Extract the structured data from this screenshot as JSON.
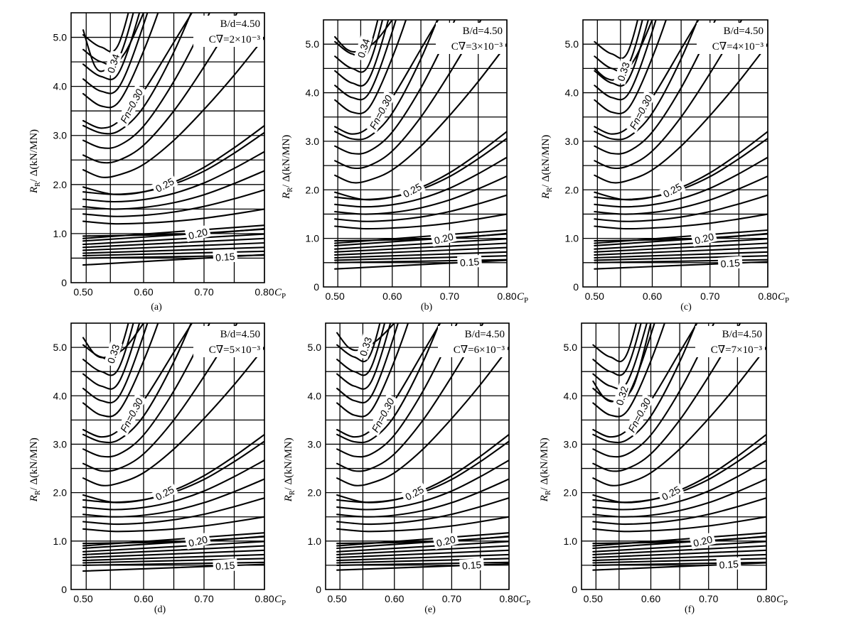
{
  "chart_data": [
    {
      "type": "line",
      "panel": "(a)",
      "xlabel": "C",
      "xlabel_sub": "P",
      "ylabel": "R",
      "ylabel_sub": "R",
      "ylabel_rest": "/ Δ(kN/MN)",
      "xlim": [
        0.48,
        0.8
      ],
      "ylim": [
        0,
        5.5
      ],
      "xticks": [
        0.5,
        0.6,
        0.7,
        0.8
      ],
      "xtick_labels": [
        "0.50",
        "0.60",
        "0.70",
        "0.80"
      ],
      "yticks": [
        0,
        1.0,
        2.0,
        3.0,
        4.0,
        5.0
      ],
      "ytick_labels": [
        "0",
        "1.0",
        "2.0",
        "3.0",
        "4.0",
        "5.0"
      ],
      "param_b_over_d": "B/d=4.50",
      "param_cv": "C∇=2×10⁻³",
      "series": [
        {
          "name": "Fn=0.15",
          "x": [
            0.5,
            0.8
          ],
          "values": [
            0.36,
            0.57
          ]
        },
        {
          "name": "Fn=0.20",
          "x": [
            0.5,
            0.6,
            0.7,
            0.8
          ],
          "values": [
            0.95,
            0.97,
            1.0,
            1.1
          ]
        },
        {
          "name": "Fn=0.25",
          "x": [
            0.5,
            0.55,
            0.6,
            0.65,
            0.7,
            0.75,
            0.8
          ],
          "values": [
            1.95,
            1.8,
            1.85,
            2.05,
            2.35,
            2.75,
            3.2
          ]
        },
        {
          "name": "Fn=0.30",
          "x": [
            0.5,
            0.53,
            0.56,
            0.6,
            0.65,
            0.68
          ],
          "values": [
            3.3,
            3.15,
            3.3,
            3.9,
            4.9,
            5.5
          ]
        },
        {
          "name": "Fn=0.34",
          "x": [
            0.5,
            0.52,
            0.54,
            0.57,
            0.6
          ],
          "values": [
            5.15,
            4.4,
            4.35,
            4.7,
            5.5
          ]
        }
      ],
      "curve_labels": [
        "0.34",
        "Fn=0.30",
        "0.25",
        "0.20",
        "0.15"
      ]
    },
    {
      "type": "line",
      "panel": "(b)",
      "xlabel": "C",
      "xlabel_sub": "P",
      "ylabel": "R",
      "ylabel_sub": "R",
      "ylabel_rest": "/ Δ(kN/MN)",
      "xlim": [
        0.48,
        0.8
      ],
      "ylim": [
        0,
        5.5
      ],
      "xticks": [
        0.5,
        0.6,
        0.7,
        0.8
      ],
      "xtick_labels": [
        "0.50",
        "0.60",
        "0.70",
        "0.80"
      ],
      "yticks": [
        0,
        1.0,
        2.0,
        3.0,
        4.0,
        5.0
      ],
      "ytick_labels": [
        "0",
        "1.0",
        "2.0",
        "3.0",
        "4.0",
        "5.0"
      ],
      "param_b_over_d": "B/d=4.50",
      "param_cv": "C∇=3×10⁻³",
      "series": [
        {
          "name": "Fn=0.15",
          "x": [
            0.5,
            0.8
          ],
          "values": [
            0.37,
            0.55
          ]
        },
        {
          "name": "Fn=0.20",
          "x": [
            0.5,
            0.6,
            0.7,
            0.8
          ],
          "values": [
            0.95,
            0.97,
            1.0,
            1.1
          ]
        },
        {
          "name": "Fn=0.25",
          "x": [
            0.5,
            0.55,
            0.6,
            0.65,
            0.7,
            0.75,
            0.8
          ],
          "values": [
            1.95,
            1.8,
            1.85,
            2.05,
            2.35,
            2.75,
            3.2
          ]
        },
        {
          "name": "Fn=0.30",
          "x": [
            0.5,
            0.53,
            0.56,
            0.6,
            0.65,
            0.68
          ],
          "values": [
            3.3,
            3.15,
            3.3,
            3.9,
            4.9,
            5.5
          ]
        },
        {
          "name": "Fn=0.34",
          "x": [
            0.5,
            0.52,
            0.54,
            0.57,
            0.6
          ],
          "values": [
            5.15,
            4.9,
            4.85,
            5.05,
            5.5
          ]
        }
      ],
      "curve_labels": [
        "0.34",
        "Fn=0.30",
        "0.25",
        "0.20",
        "0.15"
      ]
    },
    {
      "type": "line",
      "panel": "(c)",
      "xlabel": "C",
      "xlabel_sub": "P",
      "ylabel": "R",
      "ylabel_sub": "R",
      "ylabel_rest": "/ Δ(kN/MN)",
      "xlim": [
        0.48,
        0.8
      ],
      "ylim": [
        0,
        5.5
      ],
      "xticks": [
        0.5,
        0.6,
        0.7,
        0.8
      ],
      "xtick_labels": [
        "0.50",
        "0.60",
        "0.70",
        "0.80"
      ],
      "yticks": [
        0,
        1.0,
        2.0,
        3.0,
        4.0,
        5.0
      ],
      "ytick_labels": [
        "0",
        "1.0",
        "2.0",
        "3.0",
        "4.0",
        "5.0"
      ],
      "param_b_over_d": "B/d=4.50",
      "param_cv": "C∇=4×10⁻³",
      "series": [
        {
          "name": "Fn=0.15",
          "x": [
            0.5,
            0.8
          ],
          "values": [
            0.37,
            0.52
          ]
        },
        {
          "name": "Fn=0.20",
          "x": [
            0.5,
            0.6,
            0.7,
            0.8
          ],
          "values": [
            0.95,
            0.97,
            1.0,
            1.1
          ]
        },
        {
          "name": "Fn=0.25",
          "x": [
            0.5,
            0.55,
            0.6,
            0.65,
            0.7,
            0.75,
            0.8
          ],
          "values": [
            1.95,
            1.8,
            1.85,
            2.05,
            2.35,
            2.75,
            3.2
          ]
        },
        {
          "name": "Fn=0.30",
          "x": [
            0.5,
            0.53,
            0.56,
            0.6,
            0.65,
            0.68
          ],
          "values": [
            3.3,
            3.15,
            3.3,
            3.9,
            4.9,
            5.5
          ]
        },
        {
          "name": "Fn=0.33",
          "x": [
            0.5,
            0.52,
            0.54,
            0.57,
            0.6
          ],
          "values": [
            4.5,
            4.3,
            4.3,
            4.7,
            5.5
          ]
        }
      ],
      "curve_labels": [
        "0.33",
        "Fn=0.30",
        "0.25",
        "0.20",
        "0.15"
      ]
    },
    {
      "type": "line",
      "panel": "(d)",
      "xlabel": "C",
      "xlabel_sub": "P",
      "ylabel": "R",
      "ylabel_sub": "R",
      "ylabel_rest": "/ Δ(kN/MN)",
      "xlim": [
        0.48,
        0.8
      ],
      "ylim": [
        0,
        5.5
      ],
      "xticks": [
        0.5,
        0.6,
        0.7,
        0.8
      ],
      "xtick_labels": [
        "0.50",
        "0.60",
        "0.70",
        "0.80"
      ],
      "yticks": [
        0,
        1.0,
        2.0,
        3.0,
        4.0,
        5.0
      ],
      "ytick_labels": [
        "0",
        "1.0",
        "2.0",
        "3.0",
        "4.0",
        "5.0"
      ],
      "param_b_over_d": "B/d=4.50",
      "param_cv": "C∇=5×10⁻³",
      "series": [
        {
          "name": "Fn=0.15",
          "x": [
            0.5,
            0.8
          ],
          "values": [
            0.38,
            0.52
          ]
        },
        {
          "name": "Fn=0.20",
          "x": [
            0.5,
            0.6,
            0.7,
            0.8
          ],
          "values": [
            0.95,
            0.97,
            1.0,
            1.1
          ]
        },
        {
          "name": "Fn=0.25",
          "x": [
            0.5,
            0.55,
            0.6,
            0.65,
            0.7,
            0.75,
            0.8
          ],
          "values": [
            1.95,
            1.8,
            1.85,
            2.05,
            2.35,
            2.75,
            3.2
          ]
        },
        {
          "name": "Fn=0.30",
          "x": [
            0.5,
            0.53,
            0.56,
            0.6,
            0.65,
            0.68
          ],
          "values": [
            3.3,
            3.15,
            3.3,
            3.9,
            4.9,
            5.5
          ]
        },
        {
          "name": "Fn=0.33",
          "x": [
            0.5,
            0.52,
            0.54,
            0.57,
            0.6
          ],
          "values": [
            5.2,
            4.85,
            4.8,
            5.0,
            5.5
          ]
        }
      ],
      "curve_labels": [
        "0.33",
        "Fn=0.30",
        "0.25",
        "0.20",
        "0.15"
      ]
    },
    {
      "type": "line",
      "panel": "(e)",
      "xlabel": "C",
      "xlabel_sub": "P",
      "ylabel": "R",
      "ylabel_sub": "R",
      "ylabel_rest": "/ Δ(kN/MN)",
      "xlim": [
        0.48,
        0.8
      ],
      "ylim": [
        0,
        5.5
      ],
      "xticks": [
        0.5,
        0.6,
        0.7,
        0.8
      ],
      "xtick_labels": [
        "0.50",
        "0.60",
        "0.70",
        "0.80"
      ],
      "yticks": [
        0,
        1.0,
        2.0,
        3.0,
        4.0,
        5.0
      ],
      "ytick_labels": [
        "0",
        "1.0",
        "2.0",
        "3.0",
        "4.0",
        "5.0"
      ],
      "param_b_over_d": "B/d=4.50",
      "param_cv": "C∇=6×10⁻³",
      "series": [
        {
          "name": "Fn=0.15",
          "x": [
            0.5,
            0.8
          ],
          "values": [
            0.4,
            0.53
          ]
        },
        {
          "name": "Fn=0.20",
          "x": [
            0.5,
            0.6,
            0.7,
            0.8
          ],
          "values": [
            0.95,
            0.97,
            1.0,
            1.1
          ]
        },
        {
          "name": "Fn=0.25",
          "x": [
            0.5,
            0.55,
            0.6,
            0.65,
            0.7,
            0.75,
            0.8
          ],
          "values": [
            1.95,
            1.8,
            1.85,
            2.05,
            2.35,
            2.75,
            3.2
          ]
        },
        {
          "name": "Fn=0.30",
          "x": [
            0.5,
            0.53,
            0.56,
            0.6,
            0.65,
            0.68
          ],
          "values": [
            3.3,
            3.15,
            3.3,
            3.9,
            4.9,
            5.5
          ]
        },
        {
          "name": "Fn=0.33",
          "x": [
            0.5,
            0.52,
            0.54,
            0.57,
            0.6
          ],
          "values": [
            5.3,
            5.0,
            4.95,
            5.15,
            5.5
          ]
        }
      ],
      "curve_labels": [
        "0.33",
        "Fn=0.30",
        "0.25",
        "0.20",
        "0.15"
      ]
    },
    {
      "type": "line",
      "panel": "(f)",
      "xlabel": "C",
      "xlabel_sub": "P",
      "ylabel": "R",
      "ylabel_sub": "R",
      "ylabel_rest": "/ Δ(kN/MN)",
      "xlim": [
        0.48,
        0.8
      ],
      "ylim": [
        0,
        5.5
      ],
      "xticks": [
        0.5,
        0.6,
        0.7,
        0.8
      ],
      "xtick_labels": [
        "0.50",
        "0.60",
        "0.70",
        "0.80"
      ],
      "yticks": [
        0,
        1.0,
        2.0,
        3.0,
        4.0,
        5.0
      ],
      "ytick_labels": [
        "0",
        "1.0",
        "2.0",
        "3.0",
        "4.0",
        "5.0"
      ],
      "param_b_over_d": "B/d=4.50",
      "param_cv": "C∇=7×10⁻³",
      "series": [
        {
          "name": "Fn=0.15",
          "x": [
            0.5,
            0.8
          ],
          "values": [
            0.4,
            0.55
          ]
        },
        {
          "name": "Fn=0.20",
          "x": [
            0.5,
            0.6,
            0.7,
            0.8
          ],
          "values": [
            0.95,
            0.97,
            1.0,
            1.1
          ]
        },
        {
          "name": "Fn=0.25",
          "x": [
            0.5,
            0.55,
            0.6,
            0.65,
            0.7,
            0.75,
            0.8
          ],
          "values": [
            1.95,
            1.8,
            1.85,
            2.05,
            2.35,
            2.75,
            3.2
          ]
        },
        {
          "name": "Fn=0.30",
          "x": [
            0.5,
            0.53,
            0.56,
            0.6,
            0.65,
            0.68
          ],
          "values": [
            3.3,
            3.15,
            3.3,
            3.9,
            4.9,
            5.5
          ]
        },
        {
          "name": "Fn=0.32",
          "x": [
            0.5,
            0.52,
            0.54,
            0.57,
            0.6
          ],
          "values": [
            4.3,
            3.95,
            3.9,
            4.2,
            5.5
          ]
        }
      ],
      "curve_labels": [
        "0.32",
        "Fn=0.30",
        "0.25",
        "0.20",
        "0.15"
      ]
    }
  ]
}
